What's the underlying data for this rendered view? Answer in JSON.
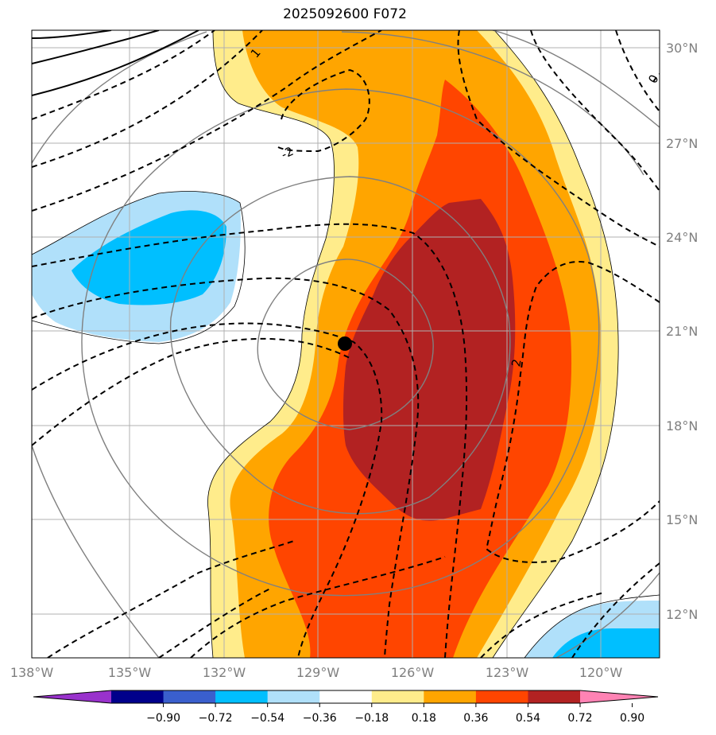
{
  "title": "2025092600 F072",
  "map": {
    "lon_labels": [
      "138°W",
      "135°W",
      "132°W",
      "129°W",
      "126°W",
      "123°W",
      "120°W"
    ],
    "lat_labels": [
      "30°N",
      "27°N",
      "24°N",
      "21°N",
      "18°N",
      "15°N",
      "12°N"
    ],
    "contour_labels": [
      "1",
      "-2",
      "2",
      "0"
    ]
  },
  "colorbar": {
    "ticks": [
      "−0.90",
      "−0.72",
      "−0.54",
      "−0.36",
      "−0.18",
      "0.18",
      "0.36",
      "0.54",
      "0.72",
      "0.90"
    ],
    "colors": [
      "#9932cc",
      "#00008b",
      "#3a5fcd",
      "#00bfff",
      "#b0e0fa",
      "#ffffff",
      "#ffec8b",
      "#ffa500",
      "#ff4500",
      "#b22222",
      "#ff83b4"
    ]
  },
  "colors": {
    "c036": "#ffec8b",
    "c054": "#ffa500",
    "c072": "#ff4500",
    "c090": "#b22222",
    "cneg018": "#b0e0fa",
    "cneg036": "#00bfff",
    "grid": "#b0b0b0",
    "rings": "#808080",
    "center": "#000000"
  }
}
